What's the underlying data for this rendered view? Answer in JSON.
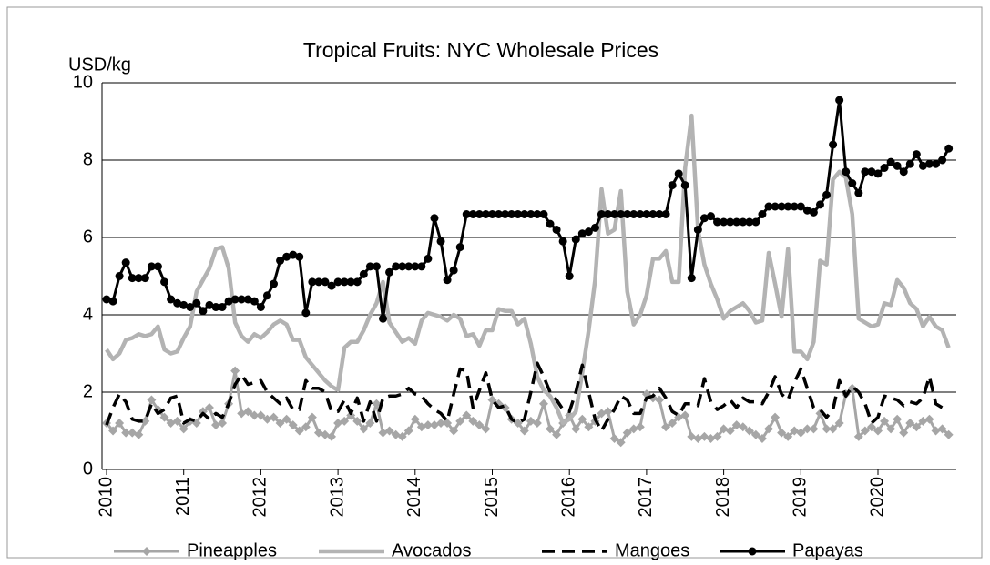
{
  "chart_data": {
    "type": "line",
    "title": "Tropical Fruits:  NYC Wholesale Prices",
    "y_label": "USD/kg",
    "categories": [
      "2010",
      null,
      null,
      null,
      null,
      null,
      null,
      null,
      null,
      null,
      null,
      null,
      "2011",
      null,
      null,
      null,
      null,
      null,
      null,
      null,
      null,
      null,
      null,
      null,
      "2012",
      null,
      null,
      null,
      null,
      null,
      null,
      null,
      null,
      null,
      null,
      null,
      "2013",
      null,
      null,
      null,
      null,
      null,
      null,
      null,
      null,
      null,
      null,
      null,
      "2014",
      null,
      null,
      null,
      null,
      null,
      null,
      null,
      null,
      null,
      null,
      null,
      "2015",
      null,
      null,
      null,
      null,
      null,
      null,
      null,
      null,
      null,
      null,
      null,
      "2016",
      null,
      null,
      null,
      null,
      null,
      null,
      null,
      null,
      null,
      null,
      null,
      "2017",
      null,
      null,
      null,
      null,
      null,
      null,
      null,
      null,
      null,
      null,
      null,
      "2018",
      null,
      null,
      null,
      null,
      null,
      null,
      null,
      null,
      null,
      null,
      null,
      "2019",
      null,
      null,
      null,
      null,
      null,
      null,
      null,
      null,
      null,
      null,
      null,
      "2020",
      null,
      null,
      null,
      null,
      null,
      null,
      null,
      null,
      null,
      null,
      null
    ],
    "ylim": [
      0,
      10
    ],
    "yticks": [
      0,
      2,
      4,
      6,
      8,
      10
    ],
    "grid": true,
    "legend": "bottom",
    "series": [
      {
        "name": "Pineapples",
        "color": "#a6a6a6",
        "marker": "diamond",
        "dash": false,
        "values": [
          1.2,
          1.0,
          1.2,
          0.95,
          0.95,
          0.9,
          1.25,
          1.8,
          1.55,
          1.35,
          1.2,
          1.25,
          1.05,
          1.25,
          1.2,
          1.5,
          1.6,
          1.15,
          1.2,
          1.7,
          2.55,
          1.45,
          1.5,
          1.4,
          1.4,
          1.3,
          1.35,
          1.2,
          1.3,
          1.15,
          1.0,
          1.1,
          1.35,
          0.95,
          0.9,
          0.85,
          1.2,
          1.25,
          1.4,
          1.25,
          1.05,
          1.2,
          1.7,
          0.95,
          1.0,
          0.9,
          0.85,
          1.0,
          1.3,
          1.1,
          1.15,
          1.15,
          1.2,
          1.2,
          1.0,
          1.25,
          1.4,
          1.25,
          1.15,
          1.05,
          1.8,
          1.7,
          1.6,
          1.3,
          1.2,
          1.0,
          1.25,
          1.2,
          1.7,
          1.05,
          0.9,
          1.2,
          1.4,
          1.05,
          1.3,
          1.1,
          1.25,
          1.45,
          1.5,
          0.8,
          0.7,
          0.95,
          1.05,
          1.1,
          1.95,
          1.85,
          1.8,
          1.1,
          1.2,
          1.35,
          1.4,
          0.85,
          0.8,
          0.85,
          0.8,
          0.85,
          1.05,
          1.0,
          1.15,
          1.1,
          1.0,
          0.9,
          0.8,
          1.05,
          1.35,
          0.95,
          0.85,
          1.0,
          0.95,
          1.05,
          1.05,
          1.45,
          1.05,
          1.05,
          1.2,
          1.95,
          2.1,
          0.85,
          1.0,
          1.1,
          1.0,
          1.25,
          1.05,
          1.3,
          0.95,
          1.2,
          1.1,
          1.25,
          1.3,
          1.0,
          1.05,
          0.9
        ]
      },
      {
        "name": "Avocados",
        "color": "#b3b3b3",
        "marker": "none",
        "dash": false,
        "values": [
          3.1,
          2.85,
          3.0,
          3.35,
          3.4,
          3.5,
          3.45,
          3.5,
          3.7,
          3.1,
          3.0,
          3.05,
          3.4,
          3.7,
          4.6,
          4.9,
          5.2,
          5.7,
          5.75,
          5.2,
          3.8,
          3.45,
          3.3,
          3.5,
          3.4,
          3.55,
          3.75,
          3.85,
          3.75,
          3.35,
          3.35,
          2.9,
          2.7,
          2.5,
          2.3,
          2.15,
          2.05,
          3.15,
          3.3,
          3.3,
          3.6,
          4.0,
          4.3,
          4.85,
          3.8,
          3.55,
          3.3,
          3.4,
          3.25,
          3.85,
          4.05,
          4.0,
          3.95,
          3.85,
          4.0,
          3.9,
          3.45,
          3.5,
          3.2,
          3.6,
          3.6,
          4.15,
          4.1,
          4.1,
          3.75,
          3.9,
          3.25,
          2.4,
          2.05,
          1.9,
          1.6,
          1.2,
          1.3,
          1.5,
          2.5,
          3.6,
          4.9,
          7.25,
          6.1,
          6.2,
          7.2,
          4.6,
          3.75,
          4.0,
          4.5,
          5.45,
          5.45,
          5.65,
          4.85,
          4.85,
          7.8,
          9.15,
          6.2,
          5.3,
          4.8,
          4.4,
          3.9,
          4.1,
          4.2,
          4.3,
          4.1,
          3.8,
          3.85,
          5.6,
          4.8,
          3.95,
          5.7,
          3.05,
          3.05,
          2.85,
          3.3,
          5.4,
          5.3,
          7.5,
          7.7,
          7.55,
          6.6,
          3.9,
          3.8,
          3.7,
          3.75,
          4.3,
          4.25,
          4.9,
          4.7,
          4.3,
          4.15,
          3.7,
          3.95,
          3.7,
          3.6,
          3.15
        ]
      },
      {
        "name": "Mangoes",
        "color": "#000000",
        "marker": "none",
        "dash": true,
        "values": [
          1.15,
          1.6,
          1.95,
          1.75,
          1.3,
          1.25,
          1.25,
          1.7,
          1.45,
          1.55,
          1.85,
          1.9,
          1.2,
          1.3,
          1.25,
          1.45,
          1.3,
          1.45,
          1.35,
          1.7,
          2.2,
          2.45,
          2.2,
          2.25,
          2.3,
          2.0,
          1.85,
          1.7,
          1.85,
          1.55,
          1.55,
          2.3,
          2.1,
          2.1,
          2.0,
          1.5,
          1.5,
          1.8,
          1.45,
          1.85,
          1.25,
          1.75,
          1.25,
          1.85,
          1.9,
          1.9,
          1.95,
          2.1,
          1.95,
          1.9,
          1.7,
          1.55,
          1.45,
          1.25,
          1.95,
          2.6,
          2.55,
          1.6,
          2.05,
          2.5,
          1.8,
          1.6,
          1.65,
          1.3,
          1.2,
          1.3,
          2.0,
          2.75,
          2.4,
          2.0,
          1.8,
          1.55,
          1.5,
          2.0,
          2.7,
          2.0,
          1.3,
          1.0,
          1.3,
          1.55,
          1.9,
          1.8,
          1.45,
          1.45,
          1.85,
          1.9,
          2.1,
          1.85,
          1.5,
          1.4,
          1.7,
          1.7,
          1.65,
          2.35,
          1.75,
          1.55,
          1.65,
          1.8,
          1.6,
          1.85,
          1.75,
          1.75,
          1.7,
          2.0,
          2.4,
          1.95,
          1.8,
          2.25,
          2.6,
          2.1,
          1.6,
          1.55,
          1.35,
          1.55,
          2.3,
          1.9,
          2.15,
          2.0,
          1.7,
          1.2,
          1.35,
          1.9,
          1.85,
          1.8,
          1.65,
          1.75,
          1.7,
          1.85,
          2.4,
          1.7,
          1.6,
          1.65
        ]
      },
      {
        "name": "Papayas",
        "color": "#000000",
        "marker": "circle",
        "dash": false,
        "values": [
          4.4,
          4.35,
          5.0,
          5.35,
          4.95,
          4.95,
          4.95,
          5.25,
          5.25,
          4.85,
          4.4,
          4.3,
          4.25,
          4.2,
          4.3,
          4.1,
          4.25,
          4.2,
          4.2,
          4.35,
          4.4,
          4.4,
          4.4,
          4.35,
          4.2,
          4.5,
          4.8,
          5.4,
          5.5,
          5.55,
          5.5,
          4.05,
          4.85,
          4.85,
          4.85,
          4.75,
          4.85,
          4.85,
          4.85,
          4.85,
          5.05,
          5.25,
          5.25,
          3.9,
          5.1,
          5.25,
          5.25,
          5.25,
          5.25,
          5.25,
          5.45,
          6.5,
          5.9,
          4.9,
          5.15,
          5.75,
          6.6,
          6.6,
          6.6,
          6.6,
          6.6,
          6.6,
          6.6,
          6.6,
          6.6,
          6.6,
          6.6,
          6.6,
          6.6,
          6.35,
          6.2,
          5.9,
          5.0,
          5.95,
          6.1,
          6.15,
          6.25,
          6.6,
          6.6,
          6.6,
          6.6,
          6.6,
          6.6,
          6.6,
          6.6,
          6.6,
          6.6,
          6.6,
          7.35,
          7.65,
          7.35,
          4.95,
          6.2,
          6.5,
          6.55,
          6.4,
          6.4,
          6.4,
          6.4,
          6.4,
          6.4,
          6.4,
          6.6,
          6.8,
          6.8,
          6.8,
          6.8,
          6.8,
          6.8,
          6.7,
          6.65,
          6.85,
          7.1,
          8.4,
          9.55,
          7.7,
          7.4,
          7.15,
          7.7,
          7.7,
          7.65,
          7.8,
          7.95,
          7.85,
          7.7,
          7.9,
          8.15,
          7.85,
          7.9,
          7.9,
          8.0,
          8.3
        ]
      }
    ]
  }
}
